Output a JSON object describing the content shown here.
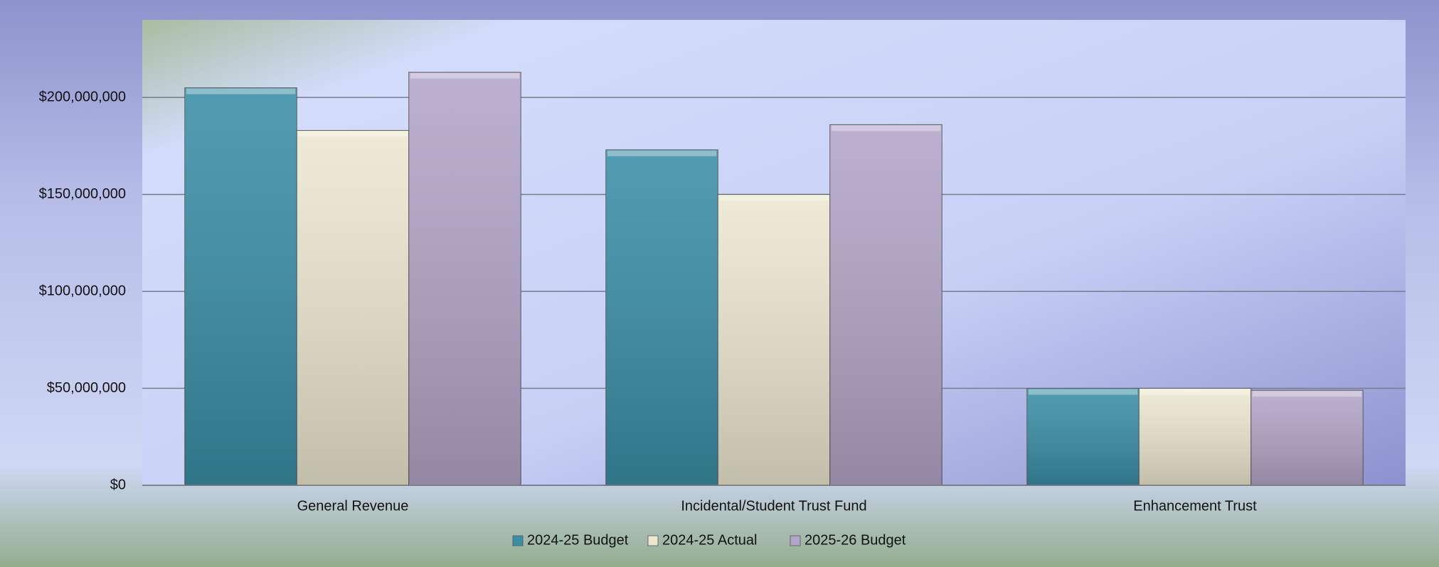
{
  "chart_data": {
    "type": "bar",
    "categories": [
      "General Revenue",
      "Incidental/Student Trust Fund",
      "Enhancement Trust"
    ],
    "series": [
      {
        "name": "2024-25 Budget",
        "color": "#3a8ea6",
        "values": [
          205000000,
          173000000,
          50000000
        ]
      },
      {
        "name": "2024-25 Actual",
        "color": "#ece7cf",
        "values": [
          183000000,
          150000000,
          50000000
        ]
      },
      {
        "name": "2025-26 Budget",
        "color": "#b3a5c9",
        "values": [
          213000000,
          186000000,
          49000000
        ]
      }
    ],
    "ylim": [
      0,
      240000000
    ],
    "yticks": [
      {
        "value": 0,
        "label": "$0"
      },
      {
        "value": 50000000,
        "label": "$50,000,000"
      },
      {
        "value": 100000000,
        "label": "$100,000,000"
      },
      {
        "value": 150000000,
        "label": "$150,000,000"
      },
      {
        "value": 200000000,
        "label": "$200,000,000"
      }
    ],
    "grid": true,
    "legend": "bottom"
  }
}
